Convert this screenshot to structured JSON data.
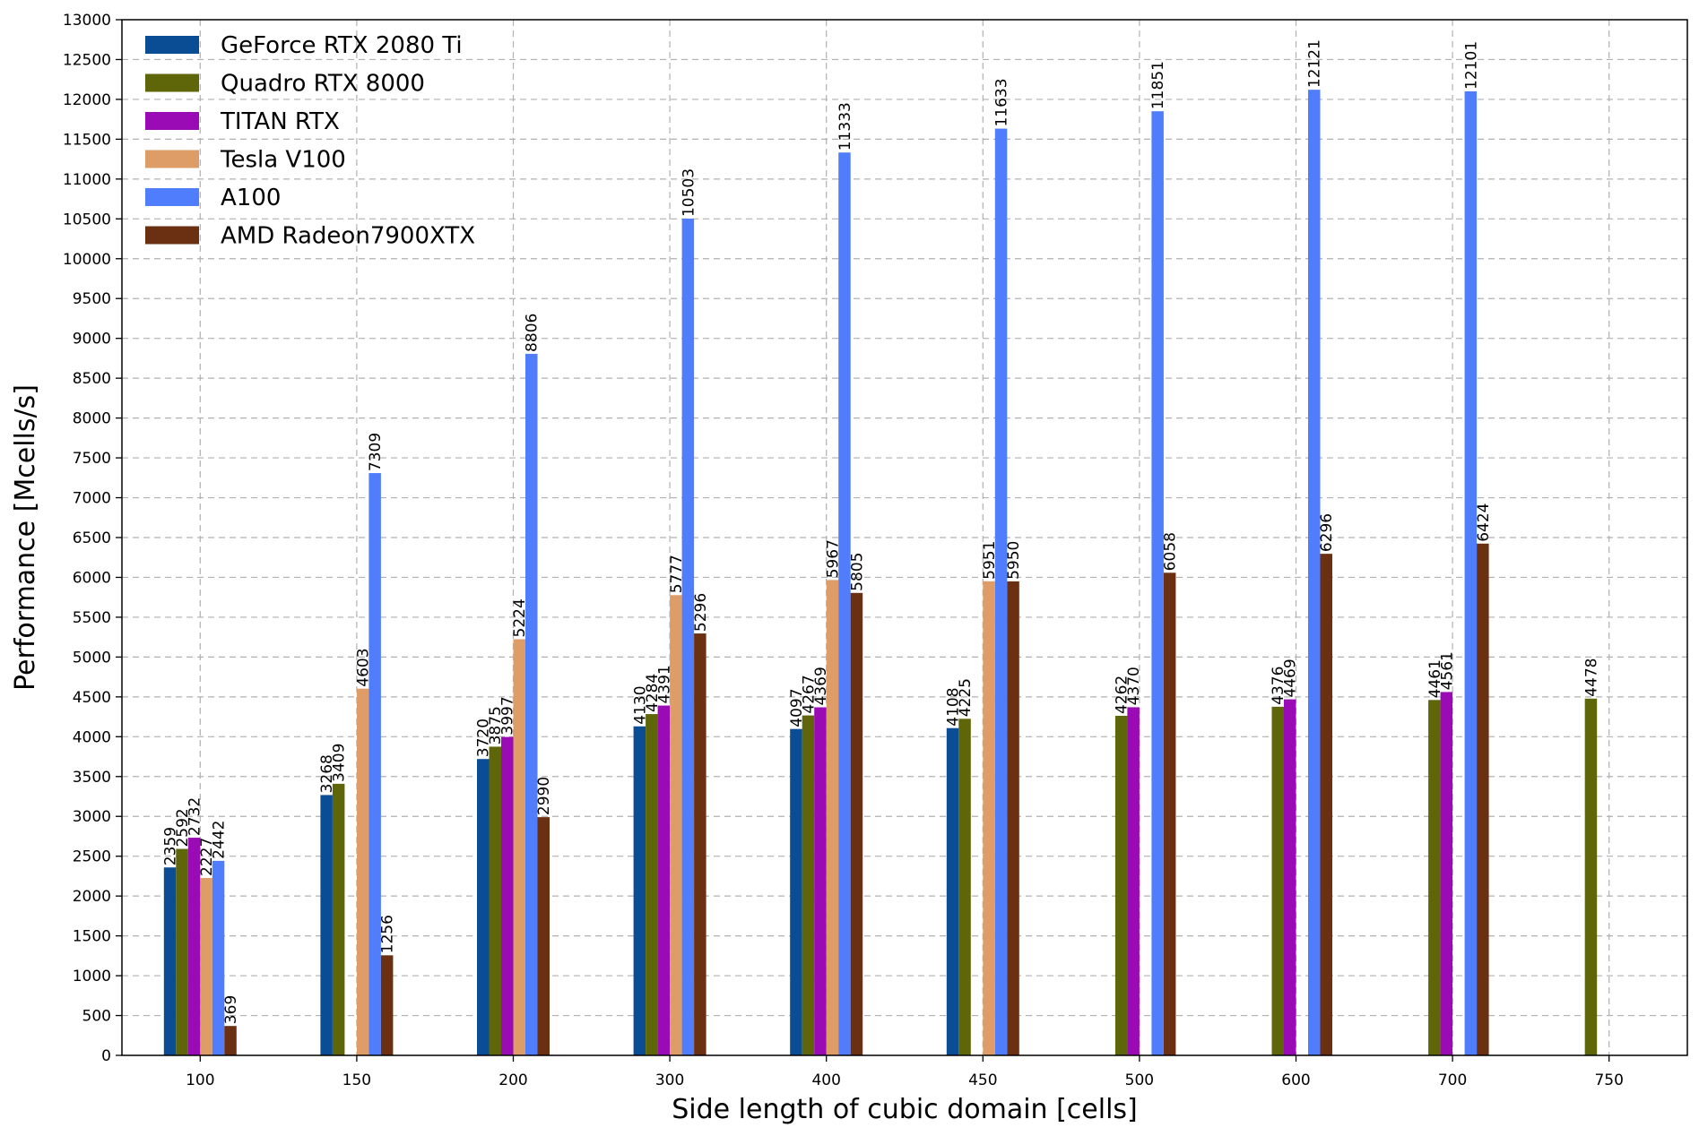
{
  "chart_data": {
    "type": "bar",
    "title": "",
    "xlabel": "Side length of cubic domain [cells]",
    "ylabel": "Performance [Mcells/s]",
    "categories": [
      "100",
      "150",
      "200",
      "300",
      "400",
      "450",
      "500",
      "600",
      "700",
      "750"
    ],
    "ylim": [
      0,
      13000
    ],
    "ytick_step": 500,
    "grid": true,
    "legend_position": "top-left",
    "series": [
      {
        "name": "GeForce RTX 2080 Ti",
        "color": "#0a4d94",
        "values": [
          2359,
          3268,
          3720,
          4130,
          4097,
          4108,
          null,
          null,
          null,
          null
        ]
      },
      {
        "name": "Quadro RTX 8000",
        "color": "#5e6609",
        "values": [
          2592,
          3409,
          3875,
          4284,
          4267,
          4225,
          4262,
          4376,
          4461,
          4478
        ]
      },
      {
        "name": "TITAN RTX",
        "color": "#9a0bb5",
        "values": [
          2732,
          null,
          3997,
          4391,
          4369,
          null,
          4370,
          4469,
          4561,
          null
        ]
      },
      {
        "name": "Tesla V100",
        "color": "#de9c66",
        "values": [
          2227,
          4603,
          5224,
          5777,
          5967,
          5951,
          null,
          null,
          null,
          null
        ]
      },
      {
        "name": "A100",
        "color": "#4f7dfc",
        "values": [
          2442,
          7309,
          8806,
          10503,
          11333,
          11633,
          11851,
          12121,
          12101,
          null
        ]
      },
      {
        "name": "AMD Radeon7900XTX",
        "color": "#6b2f12",
        "values": [
          369,
          1256,
          2990,
          5296,
          5805,
          5950,
          6058,
          6296,
          6424,
          null
        ]
      }
    ]
  }
}
